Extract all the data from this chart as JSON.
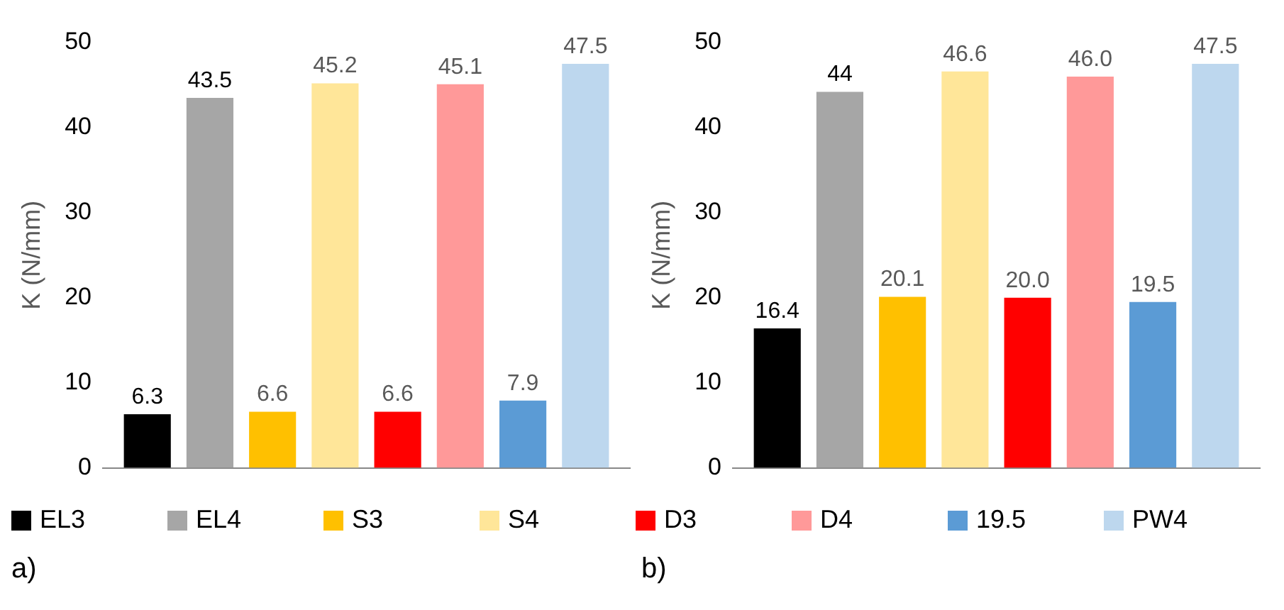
{
  "chart_data": [
    {
      "type": "bar",
      "ylabel": "K (N/mm)",
      "categories": [
        null
      ],
      "series": [
        {
          "name": "EL3",
          "color": "#000000",
          "values": [
            6.3
          ]
        },
        {
          "name": "EL4",
          "color": "#a6a6a6",
          "values": [
            43.5
          ]
        },
        {
          "name": "S3",
          "color": "#ffc000",
          "values": [
            6.6
          ]
        },
        {
          "name": "S4",
          "color": "#ffe699",
          "values": [
            45.2
          ]
        },
        {
          "name": "D3",
          "color": "#ff0000",
          "values": [
            6.6
          ]
        },
        {
          "name": "D4",
          "color": "#ff9999",
          "values": [
            45.1
          ]
        },
        {
          "name": "19.5",
          "color": "#5b9bd5",
          "values": [
            7.9
          ]
        },
        {
          "name": "PW4",
          "color": "#bdd7ee",
          "values": [
            47.5
          ]
        }
      ],
      "data_labels": true,
      "ylim": [
        0,
        50
      ],
      "yticks": [
        0,
        10,
        20,
        30,
        40,
        50
      ],
      "legend": "bottom",
      "annotations": [
        "a)"
      ]
    },
    {
      "type": "bar",
      "ylabel": "K (N/mm)",
      "categories": [
        null
      ],
      "series": [
        {
          "color": "#000000",
          "values": [
            16.4
          ]
        },
        {
          "color": "#a6a6a6",
          "values": [
            44.2
          ],
          "value_labels": [
            "44"
          ]
        },
        {
          "color": "#ffc000",
          "values": [
            20.1
          ]
        },
        {
          "color": "#ffe699",
          "values": [
            46.6
          ]
        },
        {
          "color": "#ff0000",
          "values": [
            20.0
          ],
          "value_labels": [
            "20.0"
          ]
        },
        {
          "color": "#ff9999",
          "values": [
            46.0
          ],
          "value_labels": [
            "46.0"
          ]
        },
        {
          "color": "#5b9bd5",
          "values": [
            19.5
          ]
        },
        {
          "color": "#bdd7ee",
          "values": [
            47.5
          ]
        }
      ],
      "data_labels": true,
      "ylim": [
        0,
        50
      ],
      "yticks": [
        0,
        10,
        20,
        30,
        40,
        50
      ],
      "annotations": [
        "b)"
      ]
    }
  ]
}
